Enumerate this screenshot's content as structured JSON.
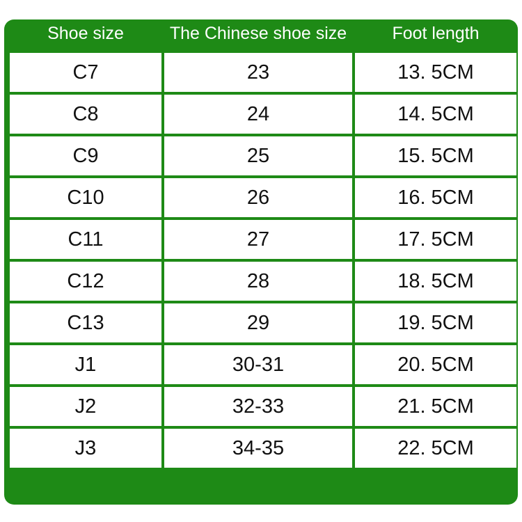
{
  "table": {
    "header": [
      "Shoe size",
      "The Chinese shoe size",
      "Foot length"
    ],
    "rows": [
      [
        "C7",
        "23",
        "13. 5CM"
      ],
      [
        "C8",
        "24",
        "14. 5CM"
      ],
      [
        "C9",
        "25",
        "15. 5CM"
      ],
      [
        "C10",
        "26",
        "16. 5CM"
      ],
      [
        "C11",
        "27",
        "17. 5CM"
      ],
      [
        "C12",
        "28",
        "18. 5CM"
      ],
      [
        "C13",
        "29",
        "19. 5CM"
      ],
      [
        "J1",
        "30-31",
        "20. 5CM"
      ],
      [
        "J2",
        "32-33",
        "21. 5CM"
      ],
      [
        "J3",
        "34-35",
        "22. 5CM"
      ]
    ]
  }
}
